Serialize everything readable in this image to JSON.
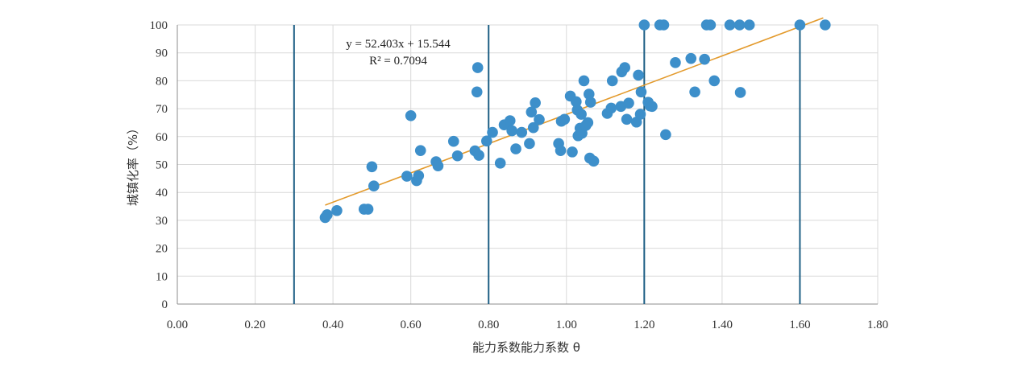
{
  "chart_data": {
    "type": "scatter",
    "xlabel": "能力系数能力系数 θ",
    "ylabel": "城镇化率（%）",
    "xlim": [
      0,
      1.8
    ],
    "ylim": [
      0,
      100
    ],
    "x_ticks": [
      "0.00",
      "0.20",
      "0.40",
      "0.60",
      "0.80",
      "1.00",
      "1.20",
      "1.40",
      "1.60",
      "1.80"
    ],
    "y_ticks": [
      "0",
      "10",
      "20",
      "30",
      "40",
      "50",
      "60",
      "70",
      "80",
      "90",
      "100"
    ],
    "grid": "horizontal and vertical",
    "legend": "none",
    "colors": {
      "points": "#3d8fca",
      "trendline": "#e39a2c",
      "reference_lines": "#1e5f85",
      "grid": "#d9d9d9",
      "axis": "#8c8c8c"
    },
    "trendline": {
      "type": "linear",
      "equation": "y = 52.403x + 15.544",
      "r_squared": "R² = 0.7094",
      "slope": 52.403,
      "intercept": 15.544,
      "x_range": [
        0.38,
        1.66
      ]
    },
    "reference_lines_x": [
      0.3,
      0.8,
      1.2,
      1.6
    ],
    "points": [
      [
        0.38,
        31
      ],
      [
        0.385,
        32
      ],
      [
        0.41,
        33.5
      ],
      [
        0.48,
        34
      ],
      [
        0.49,
        34
      ],
      [
        0.5,
        49.2
      ],
      [
        0.505,
        42.3
      ],
      [
        0.59,
        45.8
      ],
      [
        0.6,
        67.5
      ],
      [
        0.615,
        44.2
      ],
      [
        0.62,
        46
      ],
      [
        0.625,
        55
      ],
      [
        0.665,
        51
      ],
      [
        0.67,
        49.5
      ],
      [
        0.71,
        58.3
      ],
      [
        0.72,
        53.1
      ],
      [
        0.765,
        54.9
      ],
      [
        0.77,
        76
      ],
      [
        0.772,
        84.7
      ],
      [
        0.775,
        53.3
      ],
      [
        0.795,
        58.4
      ],
      [
        0.81,
        61.5
      ],
      [
        0.83,
        50.5
      ],
      [
        0.84,
        64.2
      ],
      [
        0.855,
        65.7
      ],
      [
        0.86,
        62.1
      ],
      [
        0.87,
        55.6
      ],
      [
        0.885,
        61.5
      ],
      [
        0.905,
        57.5
      ],
      [
        0.91,
        68.8
      ],
      [
        0.915,
        63.2
      ],
      [
        0.92,
        72.1
      ],
      [
        0.93,
        66.1
      ],
      [
        0.98,
        57.5
      ],
      [
        0.985,
        55
      ],
      [
        0.987,
        65.5
      ],
      [
        0.995,
        66.2
      ],
      [
        1.01,
        74.5
      ],
      [
        1.015,
        54.5
      ],
      [
        1.025,
        72.5
      ],
      [
        1.028,
        69.5
      ],
      [
        1.03,
        60.3
      ],
      [
        1.035,
        63
      ],
      [
        1.04,
        61.2
      ],
      [
        1.038,
        68
      ],
      [
        1.045,
        80
      ],
      [
        1.05,
        64
      ],
      [
        1.055,
        65
      ],
      [
        1.058,
        75.2
      ],
      [
        1.06,
        52.3
      ],
      [
        1.062,
        72.3
      ],
      [
        1.07,
        51.2
      ],
      [
        1.105,
        68.3
      ],
      [
        1.115,
        70.2
      ],
      [
        1.118,
        80
      ],
      [
        1.14,
        70.8
      ],
      [
        1.142,
        83.2
      ],
      [
        1.15,
        84.7
      ],
      [
        1.155,
        66.2
      ],
      [
        1.16,
        72
      ],
      [
        1.18,
        65.2
      ],
      [
        1.185,
        82
      ],
      [
        1.19,
        68
      ],
      [
        1.192,
        76
      ],
      [
        1.2,
        100
      ],
      [
        1.21,
        72.3
      ],
      [
        1.215,
        71
      ],
      [
        1.22,
        70.8
      ],
      [
        1.24,
        100
      ],
      [
        1.25,
        100
      ],
      [
        1.255,
        60.7
      ],
      [
        1.28,
        86.5
      ],
      [
        1.32,
        88
      ],
      [
        1.33,
        76
      ],
      [
        1.355,
        87.7
      ],
      [
        1.36,
        100
      ],
      [
        1.37,
        100
      ],
      [
        1.38,
        80
      ],
      [
        1.42,
        100
      ],
      [
        1.445,
        100
      ],
      [
        1.447,
        75.8
      ],
      [
        1.47,
        100
      ],
      [
        1.6,
        100
      ],
      [
        1.665,
        100
      ]
    ]
  }
}
